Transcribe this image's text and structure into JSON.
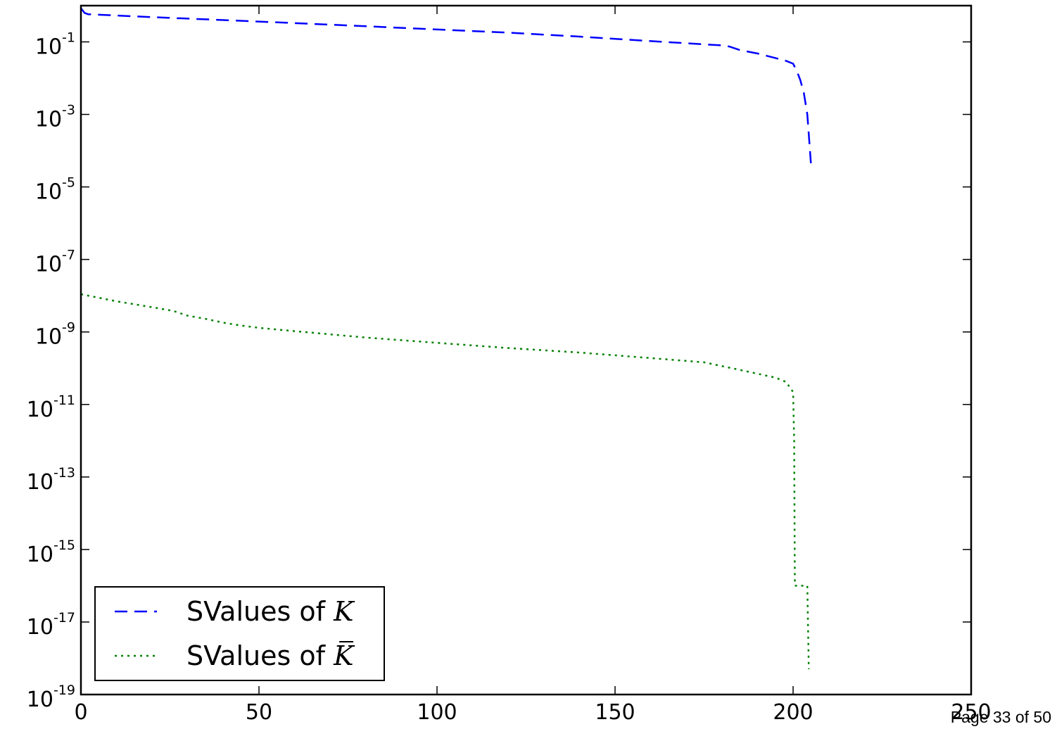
{
  "chart_data": {
    "type": "line",
    "title": "",
    "xlabel": "",
    "ylabel": "",
    "xlim": [
      0,
      250
    ],
    "ylim": [
      1e-19,
      1
    ],
    "yscale": "log",
    "grid": false,
    "legend_position": "lower-left",
    "x_ticks": [
      0,
      50,
      100,
      150,
      200,
      250
    ],
    "x_tick_labels": [
      "0",
      "50",
      "100",
      "150",
      "200",
      "250"
    ],
    "y_ticks": [
      {
        "base": "10",
        "exp": "-1"
      },
      {
        "base": "10",
        "exp": "-3"
      },
      {
        "base": "10",
        "exp": "-5"
      },
      {
        "base": "10",
        "exp": "-7"
      },
      {
        "base": "10",
        "exp": "-9"
      },
      {
        "base": "10",
        "exp": "-11"
      },
      {
        "base": "10",
        "exp": "-13"
      },
      {
        "base": "10",
        "exp": "-15"
      },
      {
        "base": "10",
        "exp": "-17"
      },
      {
        "base": "10",
        "exp": "-19"
      }
    ],
    "series": [
      {
        "name_text": "SValues of ",
        "name_math": "K",
        "name_math_bar": false,
        "color": "#0000ff",
        "style": "dashed",
        "x": [
          0,
          1,
          2,
          20,
          40,
          60,
          80,
          100,
          120,
          140,
          160,
          180,
          182,
          185,
          190,
          195,
          198,
          200,
          201,
          202,
          203,
          204,
          205
        ],
        "y": [
          0.85,
          0.63,
          0.58,
          0.48,
          0.4,
          0.33,
          0.27,
          0.22,
          0.18,
          0.14,
          0.105,
          0.08,
          0.075,
          0.06,
          0.048,
          0.036,
          0.03,
          0.025,
          0.016,
          0.009,
          0.004,
          0.001,
          4.5e-05
        ]
      },
      {
        "name_text": "SValues of ",
        "name_math": "K",
        "name_math_bar": true,
        "color": "#008000",
        "style": "dotted",
        "x": [
          0,
          10,
          20,
          26,
          30,
          35,
          40,
          45,
          50,
          60,
          80,
          100,
          120,
          140,
          160,
          175,
          185,
          195,
          198,
          200,
          200.3,
          200.5,
          201,
          202,
          203,
          204,
          204.4
        ],
        "y": [
          1.1e-08,
          7e-09,
          4.8e-09,
          3.8e-09,
          2.8e-09,
          2.3e-09,
          1.8e-09,
          1.5e-09,
          1.3e-09,
          1.05e-09,
          7e-10,
          5e-10,
          3.6e-10,
          2.7e-10,
          1.9e-10,
          1.45e-10,
          9e-11,
          5.5e-11,
          4.2e-11,
          2.2e-11,
          1e-12,
          1e-16,
          1e-16,
          1e-16,
          1e-16,
          1e-16,
          5e-19
        ]
      }
    ]
  },
  "page_footer": "Page 33 of 50"
}
